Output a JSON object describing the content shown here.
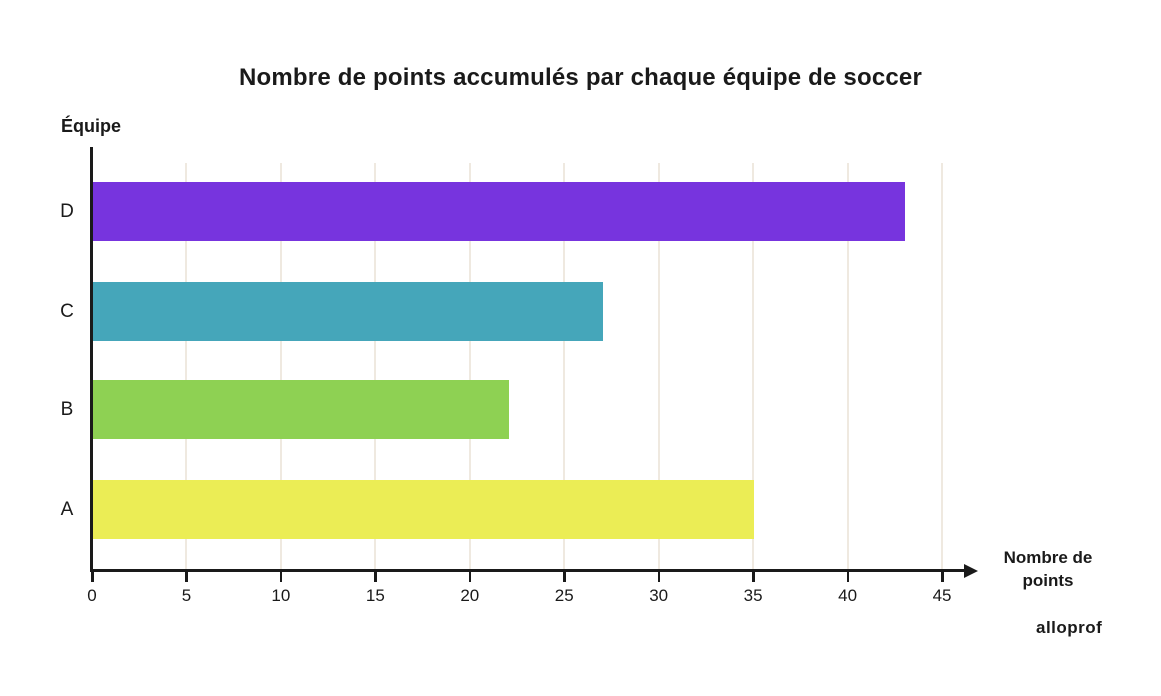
{
  "title": "Nombre de points accumulés par chaque équipe de soccer",
  "watermark": "alloprof",
  "chart_data": {
    "type": "bar",
    "orientation": "horizontal",
    "title": "Nombre de points accumulés par chaque équipe de soccer",
    "y_axis_label": "Équipe",
    "x_axis_label": "Nombre de points",
    "x_axis_label_lines": [
      "Nombre de",
      "points"
    ],
    "categories": [
      "D",
      "C",
      "B",
      "A"
    ],
    "values": [
      43,
      27,
      22,
      35
    ],
    "bar_colors": [
      "#7734DE",
      "#45A6BA",
      "#8ED153",
      "#EBED55"
    ],
    "x_ticks": [
      0,
      5,
      10,
      15,
      20,
      25,
      30,
      35,
      40,
      45
    ],
    "xlim": [
      0,
      47
    ],
    "grid": "vertical gridlines at every tick",
    "legend": "none",
    "axis_color": "#1a1a1a",
    "gridline_color": "#EFE9E0",
    "text_color": "#1a1a1a"
  }
}
